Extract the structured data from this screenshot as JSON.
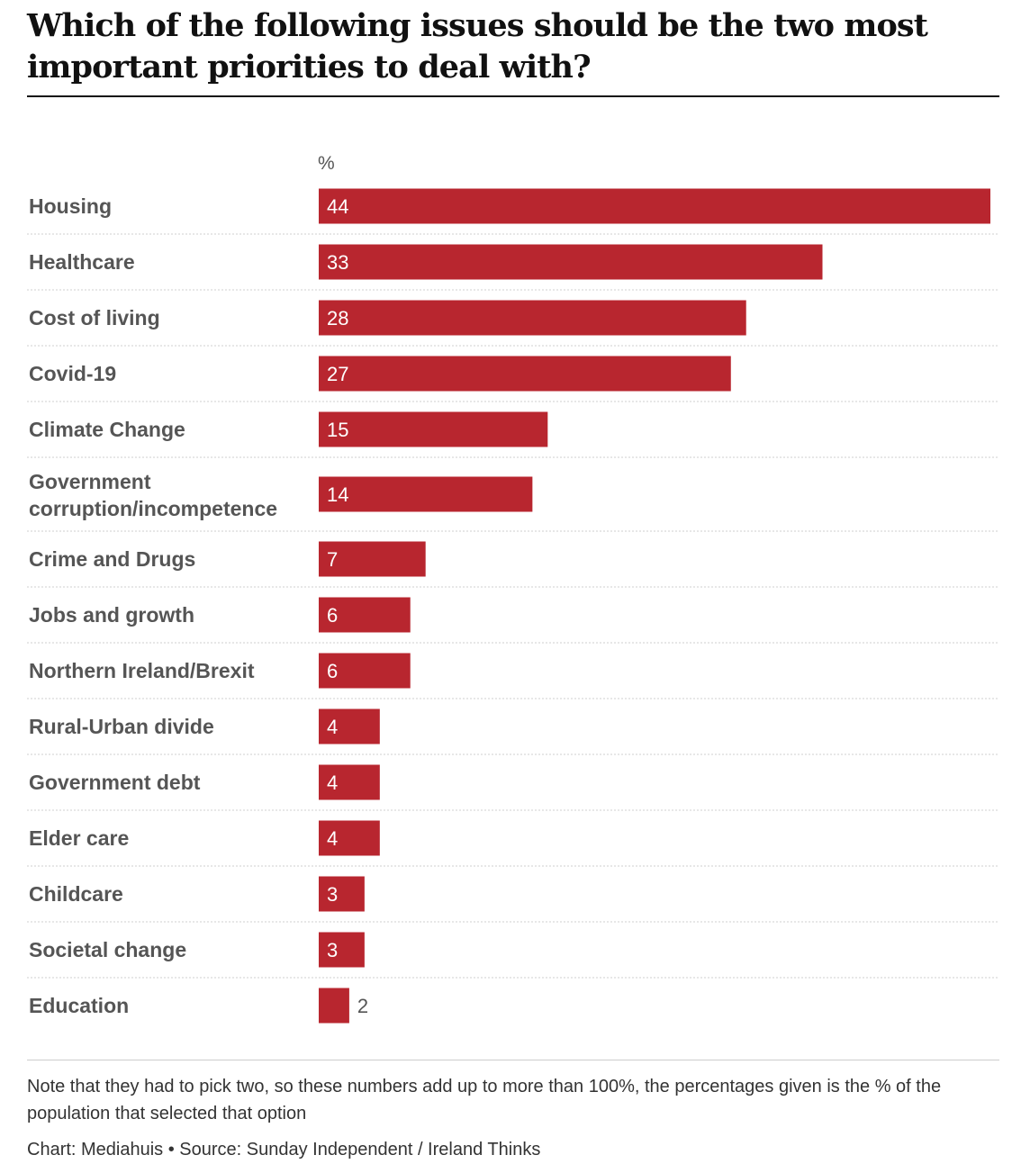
{
  "title": "Which of the following issues should be the two most important priorities to deal with?",
  "unit_label": "%",
  "note": "Note that they had to pick two, so these numbers add up to more than 100%, the percentages given is the % of the population that selected that option",
  "credit": "Chart: Mediahuis • Source: Sunday Independent / Ireland Thinks",
  "colors": {
    "bar": "#b8262f",
    "category_label": "#555555",
    "value_inside": "#ffffff",
    "value_outside": "#555555",
    "grid": "#cfcfcf"
  },
  "chart_data": {
    "type": "bar",
    "orientation": "horizontal",
    "categories": [
      "Housing",
      "Healthcare",
      "Cost of living",
      "Covid-19",
      "Climate Change",
      "Government corruption/incompetence",
      "Crime and Drugs",
      "Jobs and growth",
      "Northern Ireland/Brexit",
      "Rural-Urban divide",
      "Government debt",
      "Elder care",
      "Childcare",
      "Societal change",
      "Education"
    ],
    "values": [
      44,
      33,
      28,
      27,
      15,
      14,
      7,
      6,
      6,
      4,
      4,
      4,
      3,
      3,
      2
    ],
    "xlim": [
      0,
      44
    ],
    "grid": true,
    "legend": false
  }
}
